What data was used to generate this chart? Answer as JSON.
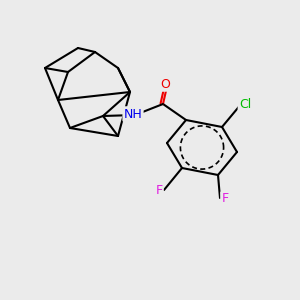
{
  "background_color": "#ebebeb",
  "bond_color": "#000000",
  "atom_colors": {
    "F": "#e020e0",
    "Cl": "#00bb00",
    "N": "#0000ee",
    "O": "#ee0000",
    "C": "#000000",
    "H": "#606060"
  },
  "bond_width": 1.5,
  "font_size": 9,
  "font_size_small": 7.5
}
